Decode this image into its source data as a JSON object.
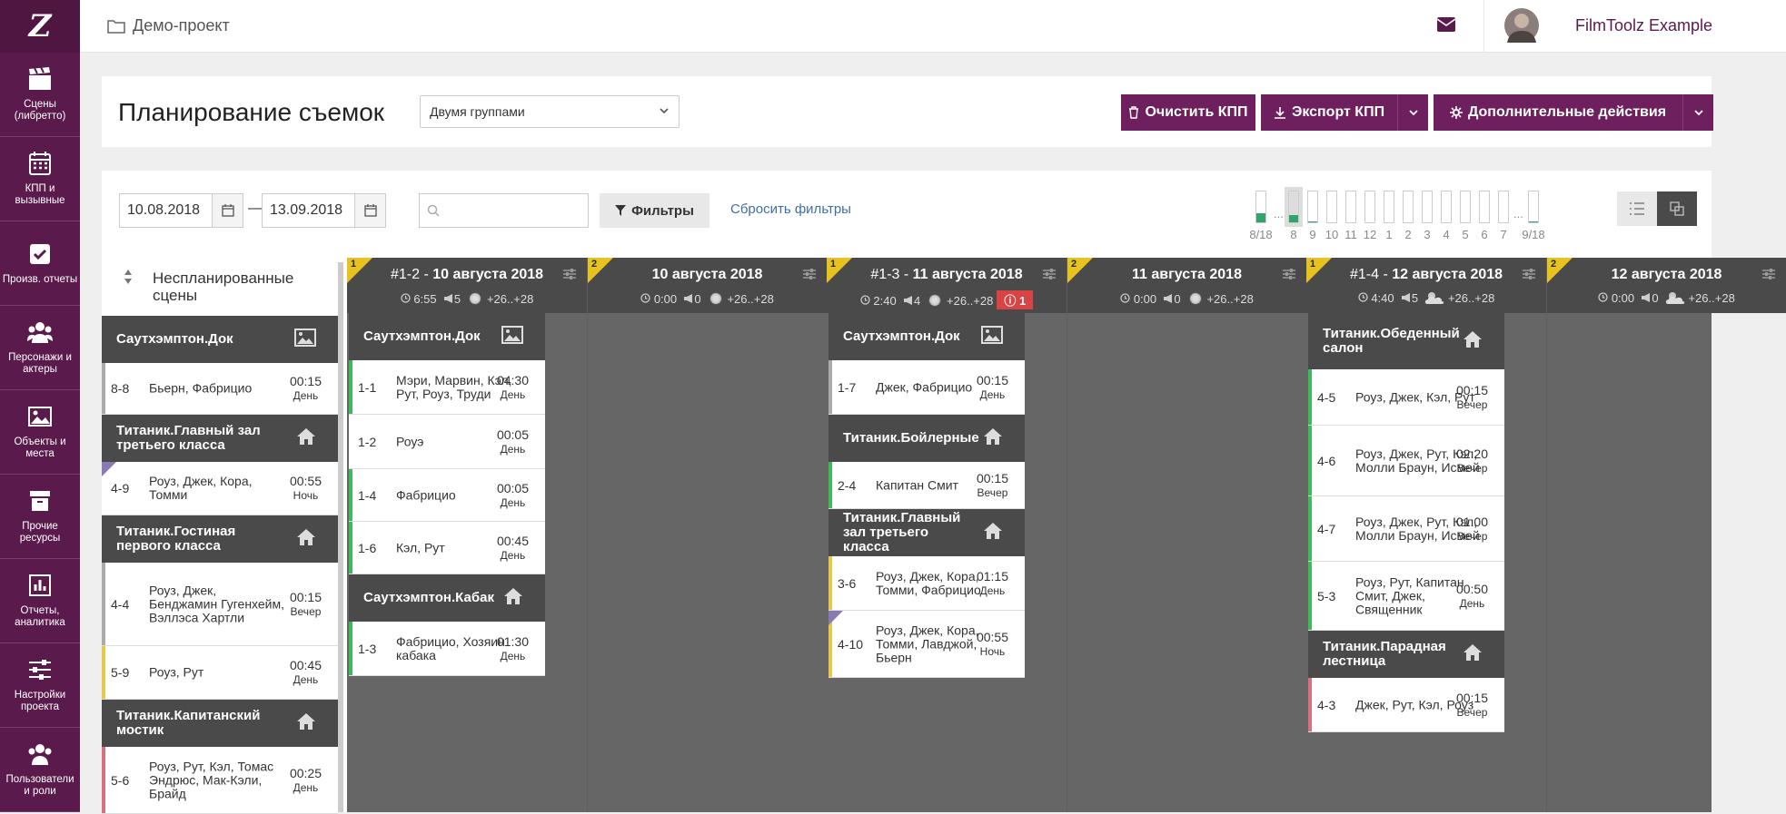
{
  "app": {
    "project": "Демо-проект",
    "user": "FilmToolz Example",
    "logo": "Z"
  },
  "nav": [
    {
      "label": "Сцены (либретто)",
      "icon": "clapperboard-icon"
    },
    {
      "label": "КПП и вызывные",
      "icon": "calendar-icon"
    },
    {
      "label": "Произв. отчеты",
      "icon": "checkbox-icon"
    },
    {
      "label": "Персонажи и актеры",
      "icon": "people-icon"
    },
    {
      "label": "Объекты и места",
      "icon": "image-icon"
    },
    {
      "label": "Прочие ресурсы",
      "icon": "archive-icon"
    },
    {
      "label": "Отчеты, аналитика",
      "icon": "bar-chart-icon"
    },
    {
      "label": "Настройки проекта",
      "icon": "sliders-icon"
    },
    {
      "label": "Пользователи и роли",
      "icon": "users-icon"
    }
  ],
  "header": {
    "title": "Планирование съемок",
    "mode": "Двумя группами",
    "btn_clear": "Очистить КПП",
    "btn_export": "Экспорт КПП",
    "btn_more": "Дополнительные действия"
  },
  "filters": {
    "date_from": "10.08.2018",
    "dash": "—",
    "date_to": "13.09.2018",
    "search_placeholder": "",
    "filters_label": "Фильтры",
    "reset_label": "Сбросить фильтры"
  },
  "timeline": [
    {
      "label": "8/18",
      "fill": 0.3
    },
    {
      "label": "...",
      "fill": 0
    },
    {
      "label": "8",
      "fill": 0.25
    },
    {
      "label": "9",
      "fill": 0.03
    },
    {
      "label": "10",
      "fill": 0
    },
    {
      "label": "11",
      "fill": 0
    },
    {
      "label": "12",
      "fill": 0
    },
    {
      "label": "1",
      "fill": 0
    },
    {
      "label": "2",
      "fill": 0
    },
    {
      "label": "3",
      "fill": 0
    },
    {
      "label": "4",
      "fill": 0
    },
    {
      "label": "5",
      "fill": 0
    },
    {
      "label": "6",
      "fill": 0
    },
    {
      "label": "7",
      "fill": 0
    },
    {
      "label": "...",
      "fill": 0
    },
    {
      "label": "9/18",
      "fill": 0.03
    }
  ],
  "unscheduled": {
    "title": "Неспланированные сцены",
    "groups": [
      {
        "name": "Саутхэмптон.Док",
        "icon": "landscape-icon",
        "scenes": [
          {
            "num": "8-8",
            "chars": "Бьерн, Фабрицио",
            "dur": "00:15",
            "time": "День",
            "color": "#aaaaaa"
          }
        ]
      },
      {
        "name": "Титаник.Главный зал третьего класса",
        "icon": "home-icon",
        "scenes": [
          {
            "num": "4-9",
            "chars": "Роуз, Джек, Кора, Томми",
            "dur": "00:55",
            "time": "Ночь",
            "color": "#ffffff",
            "corner": true
          }
        ]
      },
      {
        "name": "Титаник.Гостиная первого класса",
        "icon": "home-icon",
        "scenes": [
          {
            "num": "4-4",
            "chars": "Роуз, Джек, Бенджамин Гугенхейм, Вэллэса Хартли",
            "dur": "00:15",
            "time": "Вечер",
            "color": "#aaaaaa"
          },
          {
            "num": "5-9",
            "chars": "Роуз, Рут",
            "dur": "00:45",
            "time": "День",
            "color": "#e8c84a"
          }
        ]
      },
      {
        "name": "Титаник.Капитанский мостик",
        "icon": "home-icon",
        "scenes": [
          {
            "num": "5-6",
            "chars": "Роуз, Рут, Кэл, Томас Эндрюс, Мак-Кэли, Брайд",
            "dur": "00:25",
            "time": "День",
            "color": "#d9707f"
          }
        ]
      }
    ]
  },
  "days": [
    {
      "n": "1",
      "pre": "#1-2 - ",
      "date": "10 августа 2018",
      "time": "6:55",
      "scenes": "5",
      "weather": "+26..+28",
      "weather_icon": "sun-icon",
      "warn": "",
      "groups": [
        {
          "name": "Саутхэмптон.Док",
          "icon": "landscape-icon",
          "scenes": [
            {
              "num": "1-1",
              "chars": "Мэри, Марвин, Кэл, Рут, Роуз, Труди",
              "dur": "04:30",
              "time": "День",
              "color": "#3dbb5a"
            },
            {
              "num": "1-2",
              "chars": "Роуэ",
              "dur": "00:05",
              "time": "День",
              "color": "#ffffff"
            },
            {
              "num": "1-4",
              "chars": "Фабрицио",
              "dur": "00:05",
              "time": "День",
              "color": "#3dbb5a"
            },
            {
              "num": "1-6",
              "chars": "Кэл, Рут",
              "dur": "00:45",
              "time": "День",
              "color": "#3dbb5a"
            }
          ]
        },
        {
          "name": "Саутхэмптон.Кабак",
          "icon": "home-icon",
          "scenes": [
            {
              "num": "1-3",
              "chars": "Фабрицио, Хозяин кабака",
              "dur": "01:30",
              "time": "День",
              "color": "#3dbb5a"
            }
          ]
        }
      ]
    },
    {
      "n": "2",
      "pre": "",
      "date": "10 августа 2018",
      "time": "0:00",
      "scenes": "0",
      "weather": "+26..+28",
      "weather_icon": "sun-icon",
      "warn": "",
      "groups": []
    },
    {
      "n": "1",
      "pre": "#1-3 - ",
      "date": "11 августа 2018",
      "time": "2:40",
      "scenes": "4",
      "weather": "+26..+28",
      "weather_icon": "sun-icon",
      "warn": "1",
      "groups": [
        {
          "name": "Саутхэмптон.Док",
          "icon": "landscape-icon",
          "scenes": [
            {
              "num": "1-7",
              "chars": "Джек, Фабрицио",
              "dur": "00:15",
              "time": "День",
              "color": "#aaaaaa"
            }
          ]
        },
        {
          "name": "Титаник.Бойлерные",
          "icon": "home-icon",
          "scenes": [
            {
              "num": "2-4",
              "chars": "Капитан Смит",
              "dur": "00:15",
              "time": "Вечер",
              "color": "#3dbb5a"
            }
          ]
        },
        {
          "name": "Титаник.Главный зал третьего класса",
          "icon": "home-icon",
          "scenes": [
            {
              "num": "3-6",
              "chars": "Роуз, Джек, Кора, Томми, Фабрицио",
              "dur": "01:15",
              "time": "День",
              "color": "#e8c84a"
            },
            {
              "num": "4-10",
              "chars": "Роуз, Джек, Кора, Томми, Лавджой, Бьерн",
              "dur": "00:55",
              "time": "Ночь",
              "color": "#e8c84a",
              "corner": true
            }
          ]
        }
      ]
    },
    {
      "n": "2",
      "pre": "",
      "date": "11 августа 2018",
      "time": "0:00",
      "scenes": "0",
      "weather": "+26..+28",
      "weather_icon": "sun-icon",
      "warn": "",
      "groups": []
    },
    {
      "n": "1",
      "pre": "#1-4 - ",
      "date": "12 августа 2018",
      "time": "4:40",
      "scenes": "5",
      "weather": "+26..+28",
      "weather_icon": "cloud-icon",
      "warn": "",
      "groups": [
        {
          "name": "Титаник.Обеденный салон",
          "icon": "home-icon",
          "scenes": [
            {
              "num": "4-5",
              "chars": "Роуз, Джек, Кэл, Рут",
              "dur": "00:15",
              "time": "Вечер",
              "color": "#3dbb5a"
            },
            {
              "num": "4-6",
              "chars": "Роуз, Джек, Рут, Кэл, Молли Браун, Исмей",
              "dur": "02:20",
              "time": "Вечер",
              "color": "#3dbb5a"
            },
            {
              "num": "4-7",
              "chars": "Роуз, Джек, Рут, Кэл, Молли Браун, Исмей",
              "dur": "01:00",
              "time": "Вечер",
              "color": "#3dbb5a"
            },
            {
              "num": "5-3",
              "chars": "Роуз, Рут, Капитан Смит, Джек, Священник",
              "dur": "00:50",
              "time": "День",
              "color": "#3dbb5a"
            }
          ]
        },
        {
          "name": "Титаник.Парадная лестница",
          "icon": "home-icon",
          "scenes": [
            {
              "num": "4-3",
              "chars": "Джек, Рут, Кэл, Роуз",
              "dur": "00:15",
              "time": "Вечер",
              "color": "#d9707f"
            }
          ]
        }
      ]
    },
    {
      "n": "2",
      "pre": "",
      "date": "12 августа 2018",
      "time": "0:00",
      "scenes": "0",
      "weather": "+26..+28",
      "weather_icon": "cloud-icon",
      "warn": "",
      "groups": []
    }
  ],
  "colors": {
    "brand": "#5b1a4c",
    "button": "#6e1f5d",
    "header_dark": "#4a4a4a",
    "board": "#666666",
    "flag": "#e8c21e"
  }
}
